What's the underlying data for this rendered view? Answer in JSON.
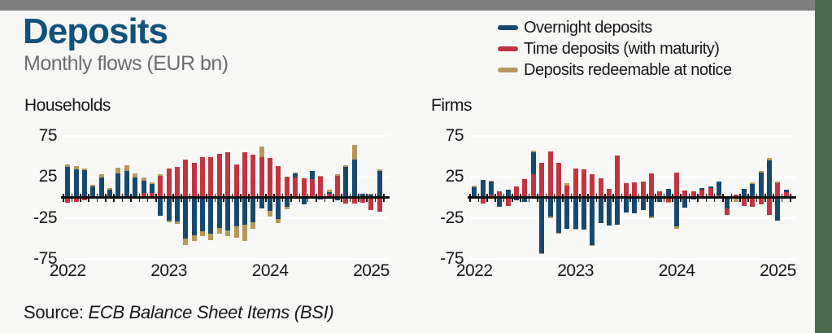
{
  "header": {
    "title": "Deposits",
    "subtitle": "Monthly flows (EUR bn)"
  },
  "legend": {
    "items": [
      {
        "label": "Overnight deposits",
        "key": "overnight"
      },
      {
        "label": "Time deposits (with maturity)",
        "key": "time"
      },
      {
        "label": "Deposits redeemable at notice",
        "key": "notice"
      }
    ]
  },
  "source": {
    "label": "Source:",
    "reference": "ECB Balance Sheet Items (BSI)"
  },
  "colors": {
    "background": "#f8f8f7",
    "top_bar": "#7f7f7f",
    "side_strip": "#4a6b4e",
    "title": "#0e527d",
    "subtitle": "#6d6d6d",
    "text": "#161616",
    "axis": "#111111",
    "gridline": "#ffffff",
    "overnight": "#17486e",
    "time": "#c03540",
    "notice": "#b5995a"
  },
  "chart_data": [
    {
      "type": "bar",
      "stacked": true,
      "title": "Households",
      "unit": "EUR bn",
      "ylim": [
        -75,
        75
      ],
      "yticks": [
        75,
        25,
        -25,
        -75
      ],
      "grid": true,
      "legend_position": "top-right-of-page",
      "x": [
        "Jan 2022",
        "Feb 2022",
        "Mar 2022",
        "Apr 2022",
        "May 2022",
        "Jun 2022",
        "Jul 2022",
        "Aug 2022",
        "Sep 2022",
        "Oct 2022",
        "Nov 2022",
        "Dec 2022",
        "Jan 2023",
        "Feb 2023",
        "Mar 2023",
        "Apr 2023",
        "May 2023",
        "Jun 2023",
        "Jul 2023",
        "Aug 2023",
        "Sep 2023",
        "Oct 2023",
        "Nov 2023",
        "Dec 2023",
        "Jan 2024",
        "Feb 2024",
        "Mar 2024",
        "Apr 2024",
        "May 2024",
        "Jun 2024",
        "Jul 2024",
        "Aug 2024",
        "Sep 2024",
        "Oct 2024",
        "Nov 2024",
        "Dec 2024",
        "Jan 2025",
        "Feb 2025"
      ],
      "year_labels": [
        {
          "index": 0,
          "label": "2022"
        },
        {
          "index": 12,
          "label": "2023"
        },
        {
          "index": 24,
          "label": "2024"
        },
        {
          "index": 36,
          "label": "2025"
        }
      ],
      "series": [
        {
          "name": "Overnight deposits",
          "key": "overnight",
          "values": [
            37,
            34,
            33,
            13,
            24,
            9,
            29,
            32,
            24,
            15,
            11,
            -22,
            -28,
            -29,
            -50,
            -46,
            -41,
            -44,
            -37,
            -40,
            -35,
            -33,
            -30,
            -13,
            -16,
            -26,
            -11,
            5,
            -8,
            10,
            -2,
            2,
            -3,
            37,
            46,
            4,
            3,
            32
          ]
        },
        {
          "name": "Time deposits (with maturity)",
          "key": "time",
          "values": [
            -6,
            -5,
            -3,
            -1,
            0,
            0,
            0,
            0,
            -1,
            5,
            5,
            26,
            35,
            37,
            46,
            42,
            49,
            49,
            53,
            55,
            40,
            55,
            52,
            49,
            48,
            38,
            25,
            24,
            23,
            22,
            25,
            4,
            26,
            -7,
            -7,
            -6,
            -15,
            -17
          ]
        },
        {
          "name": "Deposits redeemable at notice",
          "key": "notice",
          "values": [
            3,
            4,
            2,
            2,
            4,
            2,
            7,
            7,
            5,
            4,
            2,
            2,
            -2,
            -3,
            -8,
            -7,
            -6,
            -8,
            -7,
            -7,
            -14,
            -20,
            -8,
            13,
            -7,
            -5,
            -3,
            1,
            0,
            0,
            1,
            3,
            2,
            2,
            18,
            0,
            1,
            2
          ]
        }
      ]
    },
    {
      "type": "bar",
      "stacked": true,
      "title": "Firms",
      "unit": "EUR bn",
      "ylim": [
        -75,
        75
      ],
      "yticks": [
        75,
        25,
        -25,
        -75
      ],
      "grid": true,
      "x": [
        "Jan 2022",
        "Feb 2022",
        "Mar 2022",
        "Apr 2022",
        "May 2022",
        "Jun 2022",
        "Jul 2022",
        "Aug 2022",
        "Sep 2022",
        "Oct 2022",
        "Nov 2022",
        "Dec 2022",
        "Jan 2023",
        "Feb 2023",
        "Mar 2023",
        "Apr 2023",
        "May 2023",
        "Jun 2023",
        "Jul 2023",
        "Aug 2023",
        "Sep 2023",
        "Oct 2023",
        "Nov 2023",
        "Dec 2023",
        "Jan 2024",
        "Feb 2024",
        "Mar 2024",
        "Apr 2024",
        "May 2024",
        "Jun 2024",
        "Jul 2024",
        "Aug 2024",
        "Sep 2024",
        "Oct 2024",
        "Nov 2024",
        "Dec 2024",
        "Jan 2025",
        "Feb 2025"
      ],
      "year_labels": [
        {
          "index": 0,
          "label": "2022"
        },
        {
          "index": 12,
          "label": "2023"
        },
        {
          "index": 24,
          "label": "2024"
        },
        {
          "index": 36,
          "label": "2025"
        }
      ],
      "series": [
        {
          "name": "Overnight deposits",
          "key": "overnight",
          "values": [
            12,
            21,
            16,
            -11,
            9,
            -3,
            -5,
            27,
            -68,
            -23,
            -43,
            -38,
            -38,
            -39,
            -58,
            -31,
            -34,
            -33,
            -18,
            -19,
            -15,
            -23,
            -5,
            10,
            -35,
            -12,
            -2,
            2,
            2,
            17,
            -13,
            0,
            10,
            16,
            30,
            45,
            -28,
            3
          ]
        },
        {
          "name": "Time deposits (with maturity)",
          "key": "time",
          "values": [
            -1,
            -7,
            3,
            7,
            -10,
            13,
            22,
            28,
            42,
            56,
            42,
            14,
            35,
            34,
            28,
            23,
            10,
            51,
            17,
            18,
            19,
            29,
            7,
            -5,
            30,
            8,
            7,
            9,
            11,
            2,
            -8,
            3,
            -10,
            -11,
            -8,
            -21,
            17,
            6
          ]
        },
        {
          "name": "Deposits redeemable at notice",
          "key": "notice",
          "values": [
            2,
            0,
            1,
            0,
            0,
            0,
            0,
            2,
            -1,
            -2,
            -1,
            3,
            -1,
            0,
            -1,
            0,
            0,
            0,
            0,
            0,
            0,
            -2,
            0,
            -1,
            -3,
            0,
            0,
            0,
            0,
            0,
            0,
            -5,
            0,
            2,
            2,
            3,
            2,
            0
          ]
        }
      ]
    }
  ]
}
